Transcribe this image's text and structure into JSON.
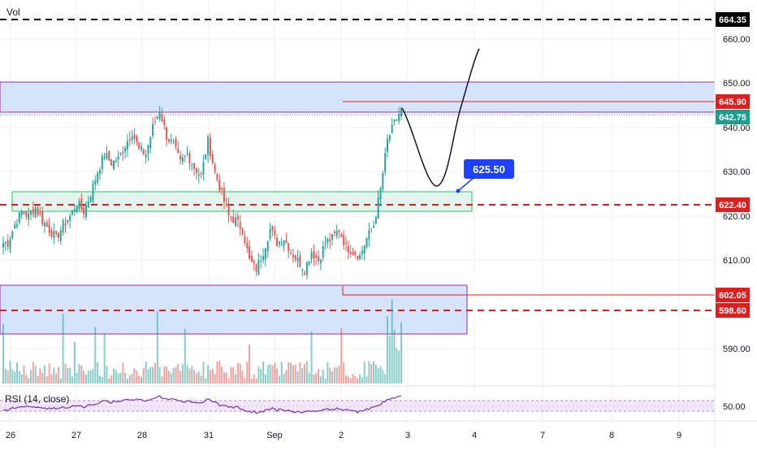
{
  "indicators": {
    "volume_label": "Vol",
    "rsi_label": "RSI (14, close)"
  },
  "colors": {
    "up": "#26a69a",
    "down": "#ef5350",
    "zone_fill": "#d6e4fb",
    "zone_border": "#9c27b0",
    "green_zone_border": "#22c55e",
    "red_line": "#e11d1d",
    "blue_label": "#1e40ff",
    "teal_label": "#1c9e8f",
    "black_label": "#000000",
    "rsi_line": "#7e2fb5"
  },
  "annotation": {
    "target_label": "625.50"
  },
  "chart_data": {
    "type": "candlestick",
    "price_axis": {
      "ticks": [
        "660.00",
        "650.00",
        "640.00",
        "630.00",
        "620.00",
        "610.00",
        "590.00"
      ],
      "ylim": [
        582,
        667
      ]
    },
    "rsi_axis": {
      "ticks": [
        "50.00"
      ]
    },
    "time_axis": {
      "ticks": [
        "26",
        "27",
        "28",
        "31",
        "Sep",
        "2",
        "3",
        "4",
        "7",
        "8",
        "9"
      ]
    },
    "price_labels": [
      {
        "value": "664.35",
        "style": "black"
      },
      {
        "value": "645.90",
        "style": "red"
      },
      {
        "value": "642.75",
        "style": "teal"
      },
      {
        "value": "622.40",
        "style": "red"
      },
      {
        "value": "602.05",
        "style": "red"
      },
      {
        "value": "598.60",
        "style": "red"
      }
    ],
    "zones": [
      {
        "top": 650.1,
        "bottom": 643.4
      },
      {
        "top": 625.3,
        "bottom": 620.6
      },
      {
        "top": 603.9,
        "bottom": 593.0
      }
    ],
    "horizontal_lines": [
      {
        "value": 664.35,
        "style": "black-dashed"
      },
      {
        "value": 645.9,
        "style": "red-solid"
      },
      {
        "value": 622.4,
        "style": "red-dashed"
      },
      {
        "value": 602.05,
        "style": "red-solid"
      },
      {
        "value": 598.6,
        "style": "red-dashed"
      }
    ],
    "close_series_approx": [
      614,
      618,
      621,
      620,
      622,
      619,
      617,
      615,
      618,
      620,
      623,
      621,
      625,
      630,
      634,
      632,
      633,
      636,
      639,
      635,
      634,
      640,
      644,
      638,
      636,
      632,
      634,
      631,
      629,
      637,
      630,
      625,
      620,
      619,
      617,
      610,
      608,
      612,
      617,
      614,
      615,
      612,
      610,
      608,
      612,
      610,
      614,
      615,
      617,
      613,
      612,
      611,
      615,
      618,
      626,
      637,
      641,
      644
    ]
  }
}
